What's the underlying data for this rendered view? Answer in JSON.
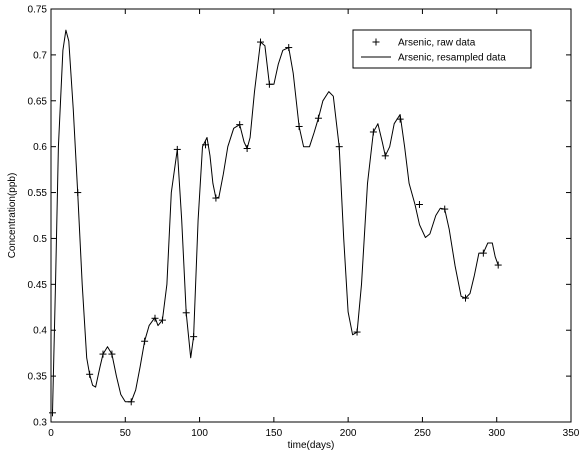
{
  "chart_data": {
    "type": "line",
    "title": "",
    "xlabel": "time(days)",
    "ylabel": "Concentration(ppb)",
    "xlim": [
      0,
      350
    ],
    "ylim": [
      0.3,
      0.75
    ],
    "xticks": [
      "0",
      "50",
      "100",
      "150",
      "200",
      "250",
      "300",
      "350"
    ],
    "yticks": [
      "0.3",
      "0.35",
      "0.4",
      "0.45",
      "0.5",
      "0.55",
      "0.6",
      "0.65",
      "0.7",
      "0.75"
    ],
    "grid": false,
    "legend_position": "top-right",
    "series": [
      {
        "name": "Arsenic, raw data",
        "style": "markers-plus",
        "color": "#000000",
        "x": [
          1,
          18,
          26,
          35,
          41,
          54,
          63,
          70,
          75,
          85,
          91,
          96,
          104,
          111,
          127,
          132,
          141,
          147,
          160,
          167,
          180,
          194,
          206,
          217,
          225,
          235,
          248,
          265,
          279,
          291,
          301
        ],
        "y": [
          0.31,
          0.55,
          0.352,
          0.374,
          0.374,
          0.322,
          0.388,
          0.413,
          0.411,
          0.597,
          0.419,
          0.393,
          0.602,
          0.544,
          0.624,
          0.598,
          0.714,
          0.668,
          0.708,
          0.622,
          0.631,
          0.6,
          0.398,
          0.616,
          0.59,
          0.63,
          0.537,
          0.532,
          0.435,
          0.484,
          0.471
        ]
      },
      {
        "name": "Arsenic, resampled data",
        "style": "line",
        "color": "#000000",
        "x": [
          1,
          3,
          5,
          8,
          10,
          12,
          15,
          18,
          21,
          24,
          26,
          28,
          30,
          33,
          35,
          38,
          41,
          44,
          47,
          50,
          54,
          57,
          60,
          63,
          66,
          70,
          72,
          75,
          78,
          81,
          85,
          88,
          91,
          94,
          96,
          99,
          102,
          105,
          107,
          109,
          111,
          113,
          116,
          119,
          123,
          127,
          130,
          132,
          134,
          137,
          141,
          144,
          147,
          150,
          153,
          156,
          160,
          163,
          167,
          170,
          174,
          177,
          180,
          183,
          187,
          190,
          194,
          197,
          200,
          203,
          206,
          209,
          213,
          217,
          220,
          223,
          225,
          228,
          231,
          235,
          238,
          241,
          245,
          248,
          252,
          255,
          259,
          262,
          265,
          268,
          272,
          276,
          279,
          282,
          285,
          288,
          291,
          294,
          297,
          299,
          301
        ],
        "y": [
          0.31,
          0.45,
          0.6,
          0.705,
          0.727,
          0.715,
          0.64,
          0.55,
          0.45,
          0.37,
          0.352,
          0.34,
          0.338,
          0.36,
          0.374,
          0.382,
          0.374,
          0.35,
          0.33,
          0.322,
          0.322,
          0.335,
          0.36,
          0.388,
          0.405,
          0.414,
          0.405,
          0.411,
          0.45,
          0.55,
          0.597,
          0.52,
          0.419,
          0.37,
          0.393,
          0.52,
          0.6,
          0.61,
          0.59,
          0.56,
          0.544,
          0.545,
          0.57,
          0.6,
          0.62,
          0.624,
          0.605,
          0.598,
          0.61,
          0.66,
          0.714,
          0.71,
          0.668,
          0.668,
          0.69,
          0.705,
          0.708,
          0.68,
          0.622,
          0.6,
          0.6,
          0.615,
          0.631,
          0.65,
          0.66,
          0.655,
          0.6,
          0.5,
          0.42,
          0.395,
          0.398,
          0.45,
          0.56,
          0.616,
          0.625,
          0.605,
          0.59,
          0.6,
          0.625,
          0.635,
          0.6,
          0.56,
          0.537,
          0.515,
          0.501,
          0.505,
          0.525,
          0.533,
          0.532,
          0.51,
          0.47,
          0.437,
          0.435,
          0.44,
          0.46,
          0.484,
          0.484,
          0.495,
          0.495,
          0.48,
          0.471
        ]
      }
    ]
  }
}
